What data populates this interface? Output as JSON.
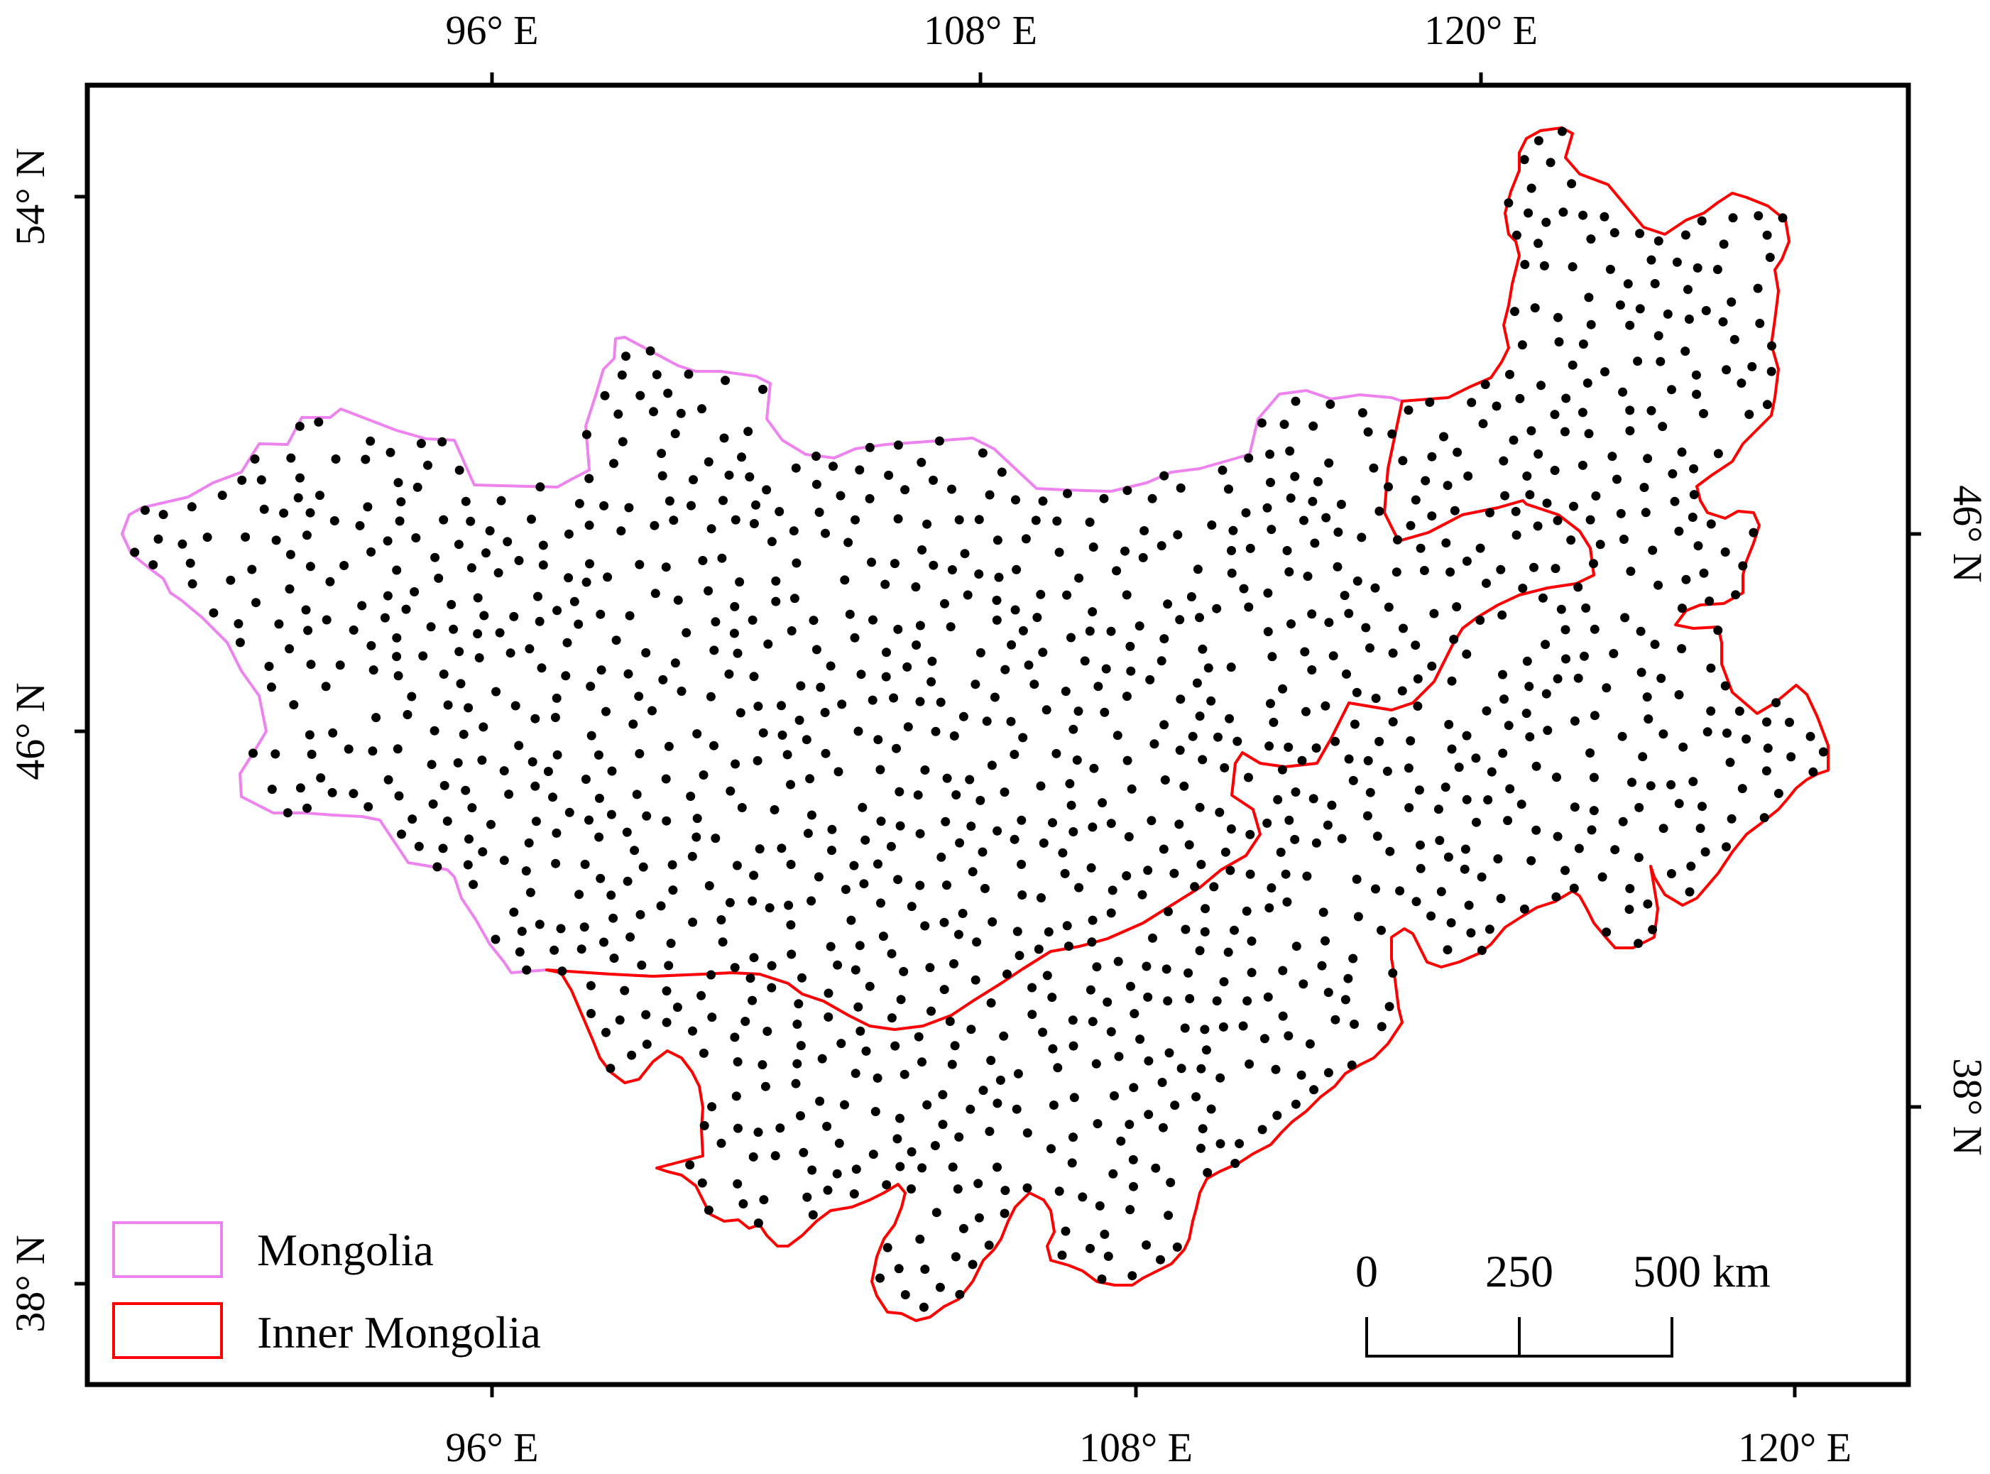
{
  "map": {
    "top_axis_labels": [
      "96° E",
      "108° E",
      "120° E"
    ],
    "bottom_axis_labels": [
      "96° E",
      "108° E",
      "120° E"
    ],
    "left_axis_labels": [
      "54° N",
      "46° N",
      "38° N"
    ],
    "right_axis_labels": [
      "46° N",
      "38° N"
    ],
    "legend": {
      "mongolia": {
        "label": "Mongolia",
        "color": "#ee82ee"
      },
      "inner_mongolia": {
        "label": "Inner Mongolia",
        "color": "#ff0000"
      }
    },
    "scale_bar": {
      "labels": [
        "0",
        "250",
        "500 km"
      ]
    },
    "colors": {
      "frame": "#000000",
      "stations": "#000000",
      "background": "#ffffff"
    }
  }
}
